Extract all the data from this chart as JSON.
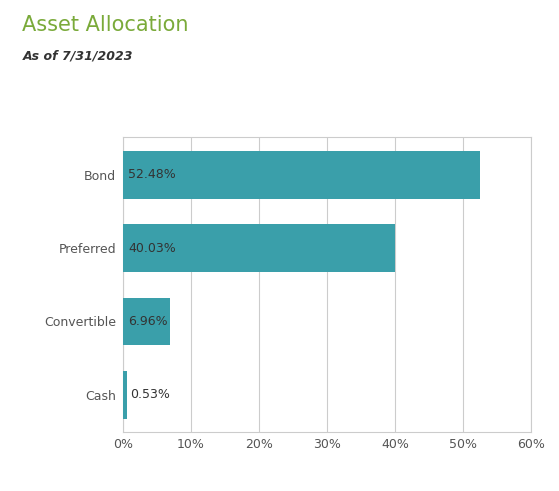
{
  "title": "Asset Allocation",
  "subtitle": "As of 7/31/2023",
  "categories": [
    "Bond",
    "Preferred",
    "Convertible",
    "Cash"
  ],
  "values": [
    52.48,
    40.03,
    6.96,
    0.53
  ],
  "labels": [
    "52.48%",
    "40.03%",
    "6.96%",
    "0.53%"
  ],
  "bar_color": "#3a9faa",
  "title_color": "#7aaa3a",
  "subtitle_color": "#333333",
  "label_color": "#333333",
  "ytick_color": "#555555",
  "bg_color": "#ffffff",
  "plot_bg_color": "#ffffff",
  "grid_color": "#cccccc",
  "border_color": "#cccccc",
  "xlim": [
    0,
    60
  ],
  "xticks": [
    0,
    10,
    20,
    30,
    40,
    50,
    60
  ],
  "xtick_labels": [
    "0%",
    "10%",
    "20%",
    "30%",
    "40%",
    "50%",
    "60%"
  ],
  "title_fontsize": 15,
  "subtitle_fontsize": 9,
  "label_fontsize": 9,
  "ytick_fontsize": 9,
  "xtick_fontsize": 9
}
